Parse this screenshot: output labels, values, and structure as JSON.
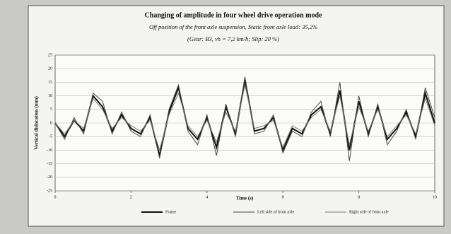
{
  "chart_data": {
    "type": "line",
    "title": "Changing of amplitude in four wheel drive operation mode",
    "subtitle": "Off position of the front axle suspension, Static front axle load: 35,2%",
    "subtitle2": "(Gear: B3, vh = 7,2 km/h; Slip: 20 %)",
    "xlabel": "Time (s)",
    "ylabel": "Vertical dislocation (mm)",
    "x": [
      0,
      0.25,
      0.5,
      0.75,
      1,
      1.25,
      1.5,
      1.75,
      2,
      2.25,
      2.5,
      2.75,
      3,
      3.25,
      3.5,
      3.75,
      4,
      4.25,
      4.5,
      4.75,
      5,
      5.25,
      5.5,
      5.75,
      6,
      6.25,
      6.5,
      6.75,
      7,
      7.25,
      7.5,
      7.75,
      8,
      8.25,
      8.5,
      8.75,
      9,
      9.25,
      9.5,
      9.75,
      10
    ],
    "series": [
      {
        "name": "Frame",
        "color": "#111111",
        "values": [
          0,
          -5,
          1,
          -3,
          10,
          6,
          -3,
          3,
          -2,
          -4,
          2,
          -12,
          4,
          13,
          -2,
          -6,
          2,
          -9,
          6,
          -4,
          16,
          -3,
          -2,
          2,
          -10,
          -2,
          -4,
          3,
          6,
          -4,
          12,
          -10,
          8,
          -4,
          6,
          -6,
          -2,
          4,
          -5,
          11,
          0
        ]
      },
      {
        "name": "Left side of front axle",
        "color": "#444444",
        "values": [
          0,
          -6,
          2,
          -4,
          11,
          8,
          -4,
          4,
          -3,
          -5,
          3,
          -13,
          5,
          14,
          -3,
          -8,
          3,
          -12,
          7,
          -5,
          17,
          -4,
          -3,
          3,
          -11,
          -3,
          -5,
          4,
          8,
          -5,
          15,
          -14,
          10,
          -5,
          7,
          -8,
          -3,
          5,
          -6,
          13,
          2
        ]
      },
      {
        "name": "Right side of front axle",
        "color": "#777777",
        "values": [
          0,
          -4,
          1,
          -2,
          9,
          5,
          -2,
          2,
          -1,
          -3,
          1,
          -10,
          3,
          11,
          -1,
          -5,
          1,
          -7,
          4,
          -3,
          14,
          -2,
          -1,
          1,
          -9,
          -1,
          -3,
          2,
          5,
          -3,
          10,
          -8,
          6,
          -3,
          5,
          -5,
          -1,
          3,
          -4,
          9,
          -1
        ]
      }
    ],
    "xlim": [
      0,
      10
    ],
    "xticks": [
      0,
      2,
      4,
      6,
      8,
      10
    ],
    "ylim": [
      -25,
      25
    ],
    "yticks": [
      -25,
      -20,
      -15,
      -10,
      -5,
      0,
      5,
      10,
      15,
      20,
      25
    ],
    "grid": true
  }
}
